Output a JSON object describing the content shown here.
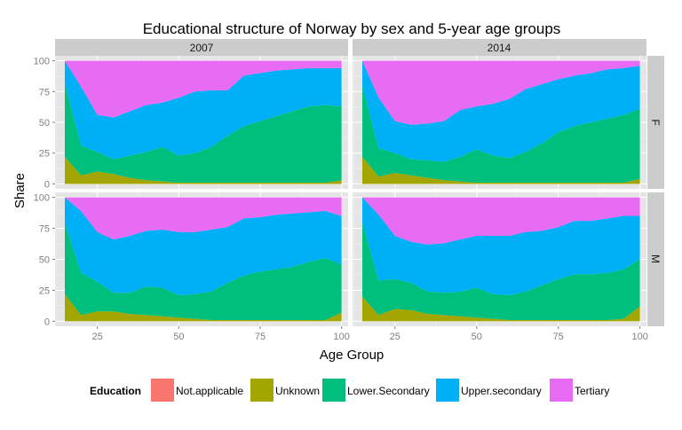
{
  "chart_data": {
    "type": "area",
    "title": "Educational structure of Norway by sex and 5-year age groups",
    "xlabel": "Age Group",
    "ylabel": "Share",
    "xlim": [
      12,
      102
    ],
    "ylim": [
      -4,
      104
    ],
    "x_ticks": [
      25,
      50,
      75,
      100
    ],
    "y_ticks": [
      0,
      25,
      50,
      75,
      100
    ],
    "stacked": true,
    "column_facets": [
      "2007",
      "2014"
    ],
    "row_facets": [
      "F",
      "M"
    ],
    "x": [
      15,
      20,
      25,
      30,
      35,
      40,
      45,
      50,
      55,
      60,
      65,
      70,
      75,
      80,
      85,
      90,
      95,
      100
    ],
    "legend": {
      "title": "Education",
      "position": "bottom",
      "entries": [
        {
          "name": "Not.applicable",
          "color": "#F8766D"
        },
        {
          "name": "Unknown",
          "color": "#A3A500"
        },
        {
          "name": "Lower.Secondary",
          "color": "#00BF7D"
        },
        {
          "name": "Upper.secondary",
          "color": "#00B0F6"
        },
        {
          "name": "Tertiary",
          "color": "#E76BF3"
        }
      ]
    },
    "panels": [
      {
        "year": "2007",
        "sex": "F",
        "series": [
          {
            "name": "Not.applicable",
            "values": [
              0,
              0,
              0,
              0,
              0,
              0,
              0,
              0,
              0,
              0,
              0,
              0,
              0,
              0,
              0,
              0,
              0,
              0
            ]
          },
          {
            "name": "Unknown",
            "values": [
              22,
              7,
              10,
              8,
              5,
              3,
              2,
              1,
              1,
              1,
              1,
              1,
              1,
              1,
              1,
              1,
              1,
              3
            ]
          },
          {
            "name": "Lower.Secondary",
            "values": [
              60,
              24,
              16,
              12,
              18,
              23,
              28,
              22,
              24,
              29,
              38,
              46,
              50,
              54,
              58,
              62,
              63,
              60
            ]
          },
          {
            "name": "Upper.secondary",
            "values": [
              18,
              48,
              30,
              34,
              36,
              38,
              36,
              47,
              50,
              46,
              37,
              41,
              39,
              37,
              34,
              31,
              30,
              31
            ]
          },
          {
            "name": "Tertiary",
            "values": [
              0,
              21,
              44,
              46,
              41,
              36,
              34,
              30,
              25,
              24,
              24,
              12,
              10,
              8,
              7,
              6,
              6,
              6
            ]
          }
        ]
      },
      {
        "year": "2014",
        "sex": "F",
        "series": [
          {
            "name": "Not.applicable",
            "values": [
              0,
              0,
              0,
              0,
              0,
              0,
              0,
              0,
              0,
              0,
              0,
              0,
              0,
              0,
              0,
              0,
              0,
              0
            ]
          },
          {
            "name": "Unknown",
            "values": [
              22,
              6,
              9,
              7,
              5,
              3,
              2,
              1,
              1,
              1,
              1,
              1,
              1,
              1,
              1,
              1,
              1,
              4
            ]
          },
          {
            "name": "Lower.Secondary",
            "values": [
              58,
              23,
              16,
              13,
              14,
              15,
              20,
              27,
              22,
              20,
              25,
              32,
              41,
              46,
              49,
              52,
              55,
              57
            ]
          },
          {
            "name": "Upper.secondary",
            "values": [
              20,
              41,
              26,
              28,
              30,
              33,
              38,
              35,
              42,
              48,
              51,
              48,
              43,
              41,
              40,
              40,
              38,
              35
            ]
          },
          {
            "name": "Tertiary",
            "values": [
              0,
              30,
              49,
              52,
              51,
              49,
              40,
              37,
              35,
              31,
              23,
              19,
              15,
              12,
              10,
              7,
              6,
              4
            ]
          }
        ]
      },
      {
        "year": "2007",
        "sex": "M",
        "series": [
          {
            "name": "Not.applicable",
            "values": [
              0,
              0,
              0,
              0,
              0,
              0,
              0,
              0,
              0,
              0,
              0,
              0,
              0,
              0,
              0,
              0,
              0,
              0
            ]
          },
          {
            "name": "Unknown",
            "values": [
              22,
              5,
              8,
              8,
              6,
              5,
              4,
              3,
              2,
              1,
              1,
              1,
              1,
              1,
              1,
              1,
              1,
              7
            ]
          },
          {
            "name": "Lower.Secondary",
            "values": [
              58,
              34,
              24,
              15,
              17,
              23,
              23,
              18,
              20,
              23,
              30,
              36,
              39,
              41,
              43,
              47,
              50,
              39
            ]
          },
          {
            "name": "Upper.secondary",
            "values": [
              20,
              50,
              40,
              43,
              46,
              45,
              47,
              51,
              50,
              50,
              45,
              46,
              44,
              44,
              43,
              40,
              38,
              39
            ]
          },
          {
            "name": "Tertiary",
            "values": [
              0,
              11,
              28,
              34,
              31,
              27,
              26,
              28,
              28,
              26,
              24,
              17,
              16,
              14,
              13,
              12,
              11,
              15
            ]
          }
        ]
      },
      {
        "year": "2014",
        "sex": "M",
        "series": [
          {
            "name": "Not.applicable",
            "values": [
              0,
              0,
              0,
              0,
              0,
              0,
              0,
              0,
              0,
              0,
              0,
              0,
              0,
              0,
              0,
              0,
              0,
              0
            ]
          },
          {
            "name": "Unknown",
            "values": [
              20,
              5,
              10,
              9,
              6,
              5,
              4,
              3,
              2,
              1,
              1,
              1,
              1,
              1,
              1,
              1,
              2,
              12
            ]
          },
          {
            "name": "Lower.Secondary",
            "values": [
              60,
              28,
              24,
              22,
              18,
              18,
              20,
              24,
              20,
              20,
              23,
              28,
              33,
              37,
              37,
              38,
              40,
              38
            ]
          },
          {
            "name": "Upper.secondary",
            "values": [
              20,
              53,
              35,
              33,
              38,
              40,
              42,
              42,
              47,
              48,
              48,
              44,
              42,
              43,
              43,
              44,
              43,
              35
            ]
          },
          {
            "name": "Tertiary",
            "values": [
              0,
              14,
              31,
              36,
              38,
              37,
              34,
              31,
              31,
              31,
              28,
              27,
              24,
              19,
              19,
              17,
              15,
              15
            ]
          }
        ]
      }
    ]
  }
}
